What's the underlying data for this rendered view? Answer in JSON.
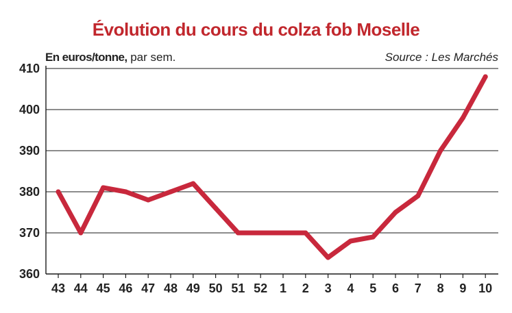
{
  "chart_data": {
    "type": "line",
    "title": "Évolution du cours du colza fob Moselle",
    "ylabel": "En euros/tonne,",
    "ylabel_suffix": "par sem.",
    "source": "Source : Les Marchés",
    "categories": [
      "43",
      "44",
      "45",
      "46",
      "47",
      "48",
      "49",
      "50",
      "51",
      "52",
      "1",
      "2",
      "3",
      "4",
      "5",
      "6",
      "7",
      "8",
      "9",
      "10"
    ],
    "series": [
      {
        "values": [
          380,
          370,
          381,
          380,
          378,
          380,
          382,
          376,
          370,
          370,
          370,
          370,
          364,
          368,
          369,
          375,
          379,
          390,
          398,
          408
        ]
      }
    ],
    "ylim": [
      360,
      410
    ],
    "yticks": [
      360,
      370,
      380,
      390,
      400,
      410
    ],
    "grid": true,
    "line_color": "#c8283c"
  }
}
